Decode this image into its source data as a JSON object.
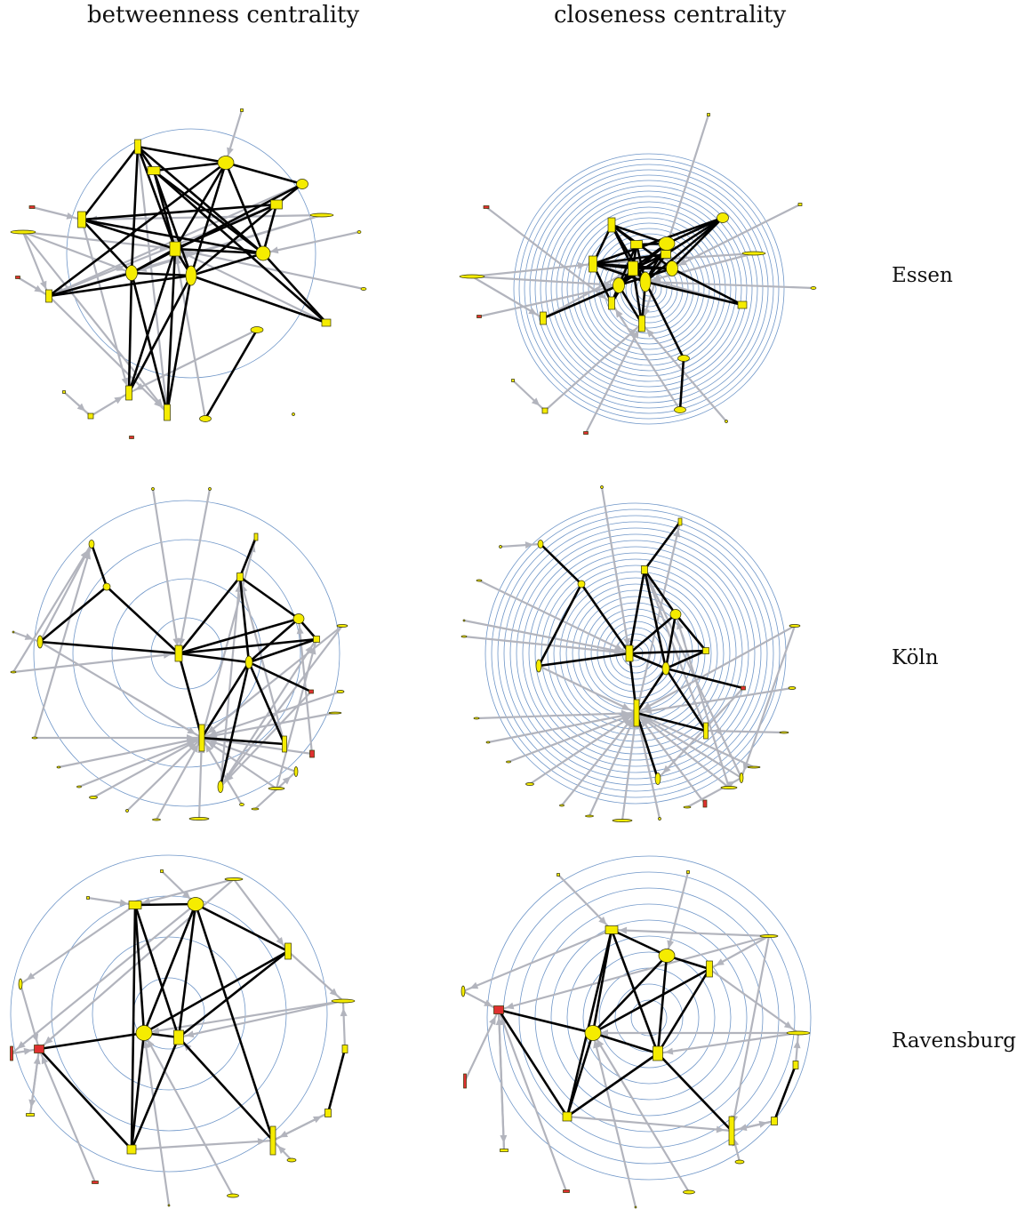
{
  "column_titles": [
    "betweenness centrality",
    "closeness centrality"
  ],
  "row_labels": [
    "Essen",
    "Köln",
    "Ravensburg"
  ],
  "colors": {
    "node_fill": "#f5ec00",
    "node_highlight": "#e03030",
    "strong_tie": "#000000",
    "weak_tie": "#b2b4bd",
    "ring": "#6f96c8"
  }
}
